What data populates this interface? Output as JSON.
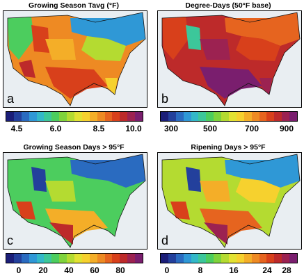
{
  "panels": [
    {
      "title": "Growing Season Tavg (°F)",
      "label": "a",
      "ticks": [
        "4.5",
        "6.0",
        "8.5",
        "10.0"
      ],
      "colorbar_colors": [
        "#1b1e78",
        "#23409c",
        "#2a6bc0",
        "#2f98d6",
        "#33b8c8",
        "#3cc79a",
        "#4ccd5e",
        "#7fd33c",
        "#b4db31",
        "#e2e232",
        "#f6d12e",
        "#f4ae28",
        "#ee8a23",
        "#e6641f",
        "#d8401b",
        "#bd2a2a",
        "#9c2251",
        "#7a1e6e"
      ]
    },
    {
      "title": "Degree-Days (50°F base)",
      "label": "b",
      "ticks": [
        "300",
        "500",
        "700",
        "900"
      ],
      "colorbar_colors": [
        "#1b1e78",
        "#23409c",
        "#2a6bc0",
        "#2f98d6",
        "#33b8c8",
        "#3cc79a",
        "#4ccd5e",
        "#7fd33c",
        "#b4db31",
        "#e2e232",
        "#f6d12e",
        "#f4ae28",
        "#ee8a23",
        "#e6641f",
        "#d8401b",
        "#bd2a2a",
        "#9c2251",
        "#7a1e6e"
      ]
    },
    {
      "title": "Growing Season Days > 95°F",
      "label": "c",
      "ticks": [
        "0",
        "20",
        "40",
        "60",
        "80"
      ],
      "colorbar_colors": [
        "#1b1e78",
        "#23409c",
        "#2a6bc0",
        "#2f98d6",
        "#33b8c8",
        "#3cc79a",
        "#4ccd5e",
        "#7fd33c",
        "#b4db31",
        "#e2e232",
        "#f6d12e",
        "#f4ae28",
        "#ee8a23",
        "#e6641f",
        "#d8401b",
        "#bd2a2a",
        "#9c2251",
        "#7a1e6e"
      ]
    },
    {
      "title": "Ripening Days > 95°F",
      "label": "d",
      "ticks": [
        "0",
        "8",
        "16",
        "24",
        "28"
      ],
      "colorbar_colors": [
        "#1b1e78",
        "#23409c",
        "#2a6bc0",
        "#2f98d6",
        "#33b8c8",
        "#3cc79a",
        "#4ccd5e",
        "#7fd33c",
        "#b4db31",
        "#e2e232",
        "#f6d12e",
        "#f4ae28",
        "#ee8a23",
        "#e6641f",
        "#d8401b",
        "#bd2a2a",
        "#9c2251",
        "#7a1e6e"
      ]
    }
  ]
}
